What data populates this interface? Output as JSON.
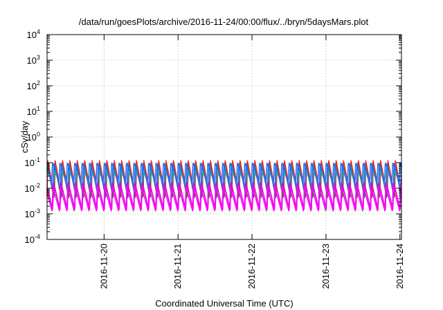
{
  "chart_data": {
    "type": "line",
    "title": "/data/run/goesPlots/archive/2016-11-24/00:00/flux/../bryn/5daysMars.plot",
    "xlabel": "Coordinated Universal Time (UTC)",
    "ylabel": "cSv/day",
    "yscale": "log",
    "ylim": [
      0.0001,
      10000
    ],
    "y_ticks": [
      {
        "value": 0.0001,
        "base": "10",
        "exp": "-4"
      },
      {
        "value": 0.001,
        "base": "10",
        "exp": "-3"
      },
      {
        "value": 0.01,
        "base": "10",
        "exp": "-2"
      },
      {
        "value": 0.1,
        "base": "10",
        "exp": "-1"
      },
      {
        "value": 1,
        "base": "10",
        "exp": "0"
      },
      {
        "value": 10,
        "base": "10",
        "exp": "1"
      },
      {
        "value": 100,
        "base": "10",
        "exp": "2"
      },
      {
        "value": 1000,
        "base": "10",
        "exp": "3"
      },
      {
        "value": 10000,
        "base": "10",
        "exp": "4"
      }
    ],
    "xlim": [
      "2016-11-19T05:30",
      "2016-11-24T00:30"
    ],
    "x_ticks": [
      "2016-11-20",
      "2016-11-21",
      "2016-11-22",
      "2016-11-23",
      "2016-11-24"
    ],
    "grid": true,
    "legend": "none",
    "sawtooth_period_hours": 2.4,
    "series": [
      {
        "color": "#ff1a1a",
        "peak": 0.12,
        "trough": 0.005
      },
      {
        "color": "#2e8b2e",
        "peak": 0.09,
        "trough": 0.004
      },
      {
        "color": "#00c8c8",
        "peak": 0.05,
        "trough": 0.012
      },
      {
        "color": "#5050ff",
        "peak": 0.095,
        "trough": 0.008
      },
      {
        "color": "#e000e0",
        "peak": 0.018,
        "trough": 0.0015
      },
      {
        "color": "#ff00ff",
        "peak": 0.012,
        "trough": 0.0012
      },
      {
        "color": "#1e78e0",
        "peak": 0.1,
        "trough": 0.018
      }
    ]
  }
}
